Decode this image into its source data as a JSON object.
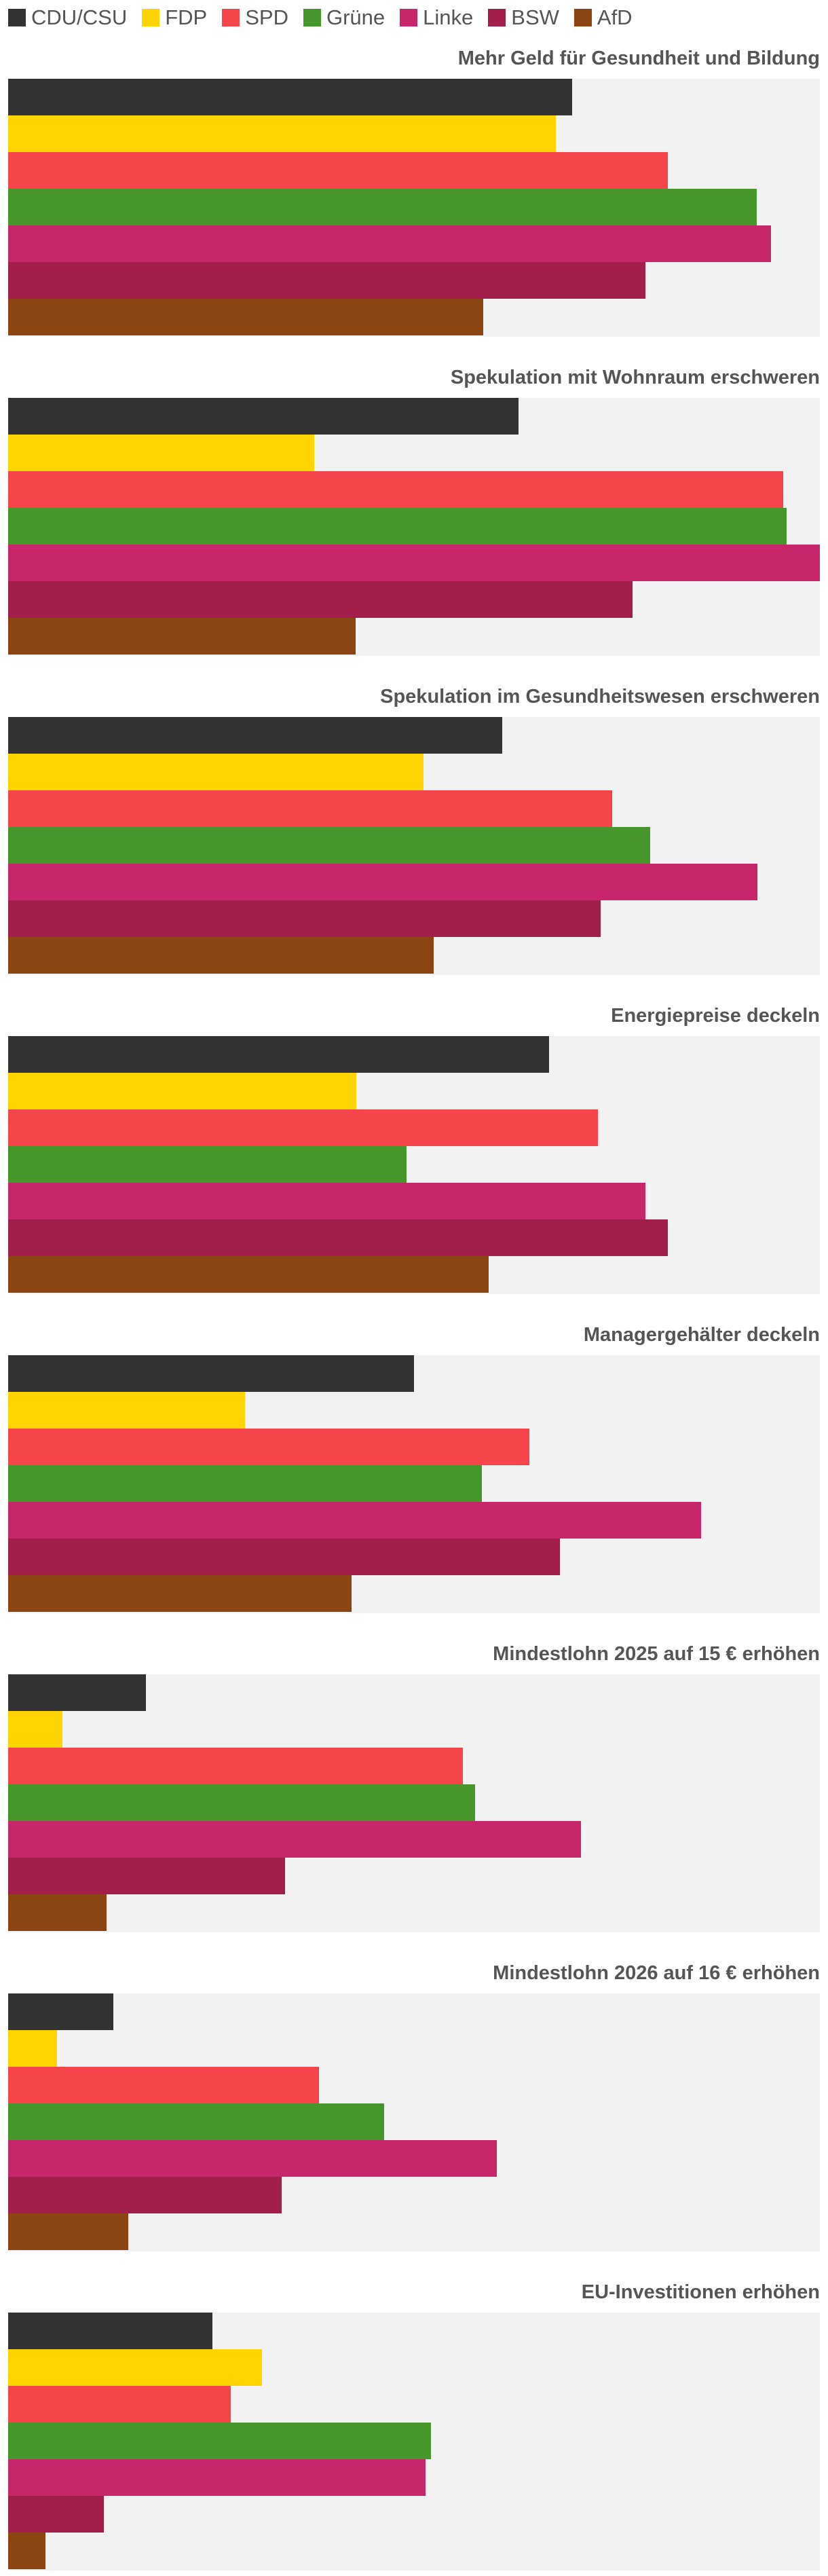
{
  "legend": {
    "items": [
      {
        "label": "CDU/CSU",
        "color": "#333333"
      },
      {
        "label": "FDP",
        "color": "#ffd400"
      },
      {
        "label": "SPD",
        "color": "#f5454a"
      },
      {
        "label": "Grüne",
        "color": "#46962b"
      },
      {
        "label": "Linke",
        "color": "#c8266a"
      },
      {
        "label": "BSW",
        "color": "#a21f4c"
      },
      {
        "label": "AfD",
        "color": "#8b4513"
      }
    ]
  },
  "chart_data": {
    "type": "bar",
    "orientation": "horizontal",
    "xlim": [
      0,
      100
    ],
    "xlabel": "",
    "ylabel": "",
    "grid": false,
    "legend_position": "top-left",
    "series_names": [
      "CDU/CSU",
      "FDP",
      "SPD",
      "Grüne",
      "Linke",
      "BSW",
      "AfD"
    ],
    "charts": [
      {
        "title": "Mehr Geld für Gesundheit und Bildung",
        "values": [
          69.5,
          67.5,
          81.3,
          92.2,
          94.0,
          78.5,
          58.5
        ]
      },
      {
        "title": "Spekulation mit Wohnraum erschweren",
        "values": [
          62.9,
          37.7,
          95.5,
          95.9,
          100.0,
          76.9,
          42.8
        ]
      },
      {
        "title": "Spekulation im Gesundheitswesen erschweren",
        "values": [
          60.9,
          51.2,
          74.4,
          79.1,
          92.3,
          73.0,
          52.4
        ]
      },
      {
        "title": "Energiepreise deckeln",
        "values": [
          66.6,
          42.9,
          72.7,
          49.1,
          78.5,
          81.3,
          59.2
        ]
      },
      {
        "title": "Managergehälter deckeln",
        "values": [
          50.0,
          29.2,
          64.2,
          58.4,
          85.4,
          68.0,
          42.3
        ]
      },
      {
        "title": "Mindestlohn 2025 auf 15 € erhöhen",
        "values": [
          17.0,
          6.7,
          56.0,
          57.5,
          70.6,
          34.1,
          12.1
        ]
      },
      {
        "title": "Mindestlohn 2026 auf 16 € erhöhen",
        "values": [
          13.0,
          6.0,
          38.3,
          46.3,
          60.2,
          33.7,
          14.8
        ]
      },
      {
        "title": "EU-Investitionen erhöhen",
        "values": [
          25.2,
          31.3,
          27.4,
          52.1,
          51.4,
          11.8,
          4.6
        ]
      }
    ]
  }
}
